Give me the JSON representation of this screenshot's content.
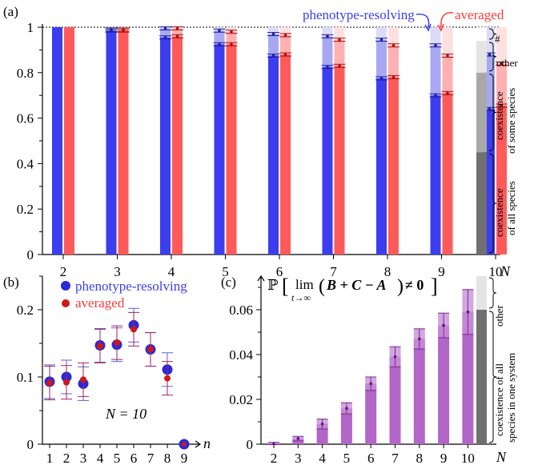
{
  "colors": {
    "phenotype_resolving": "#3d3df0",
    "averaged": "#ff5a5a",
    "purple": "#b266c8",
    "gray_dark": "#707070",
    "gray_mid": "#a8a8a8",
    "gray_light": "#e4e4e4"
  },
  "chart_data": [
    {
      "type": "bar",
      "panel_label": "(a)",
      "xlabel": "N",
      "ylabel": "",
      "ylim": [
        0,
        1
      ],
      "yticks": [
        "0",
        "0.2",
        "0.4",
        "0.6",
        "0.8",
        "1"
      ],
      "categories": [
        "2",
        "3",
        "4",
        "5",
        "6",
        "7",
        "8",
        "9",
        "10"
      ],
      "series": [
        {
          "name": "phenotype-resolving",
          "all_species": [
            1.0,
            0.985,
            0.955,
            0.925,
            0.875,
            0.825,
            0.775,
            0.7,
            0.64
          ],
          "some_species_total": [
            1.0,
            0.99,
            0.995,
            0.985,
            0.97,
            0.96,
            0.945,
            0.92,
            0.88
          ],
          "top": [
            1.0,
            0.995,
            1.0,
            0.99,
            0.975,
            0.97,
            0.955,
            0.925,
            0.9
          ]
        },
        {
          "name": "averaged",
          "all_species": [
            1.0,
            0.985,
            0.96,
            0.925,
            0.88,
            0.83,
            0.78,
            0.71,
            0.655
          ],
          "some_species_total": [
            1.0,
            0.99,
            0.995,
            0.98,
            0.965,
            0.945,
            0.92,
            0.875,
            0.84
          ],
          "top": [
            1.0,
            0.995,
            1.0,
            0.985,
            0.965,
            0.95,
            0.925,
            0.885,
            0.845
          ]
        }
      ],
      "legend_inset": {
        "segments": [
          "#",
          "other",
          "coexistence of some species",
          "coexistence of all species"
        ],
        "levels": [
          1.0,
          0.94,
          0.8,
          0.45,
          0.0
        ]
      },
      "labels": {
        "phenotype": "phenotype-resolving",
        "averaged": "averaged",
        "hash": "#",
        "other": "other",
        "some_line1": "coexistence",
        "some_line2": "of some species",
        "all_line1": "coexistence",
        "all_line2": "of all species"
      }
    },
    {
      "type": "scatter",
      "panel_label": "(b)",
      "xlabel": "n",
      "ylim": [
        0,
        0.25
      ],
      "yticks": [
        "0",
        "0.1",
        "0.2"
      ],
      "x": [
        1,
        2,
        3,
        4,
        5,
        6,
        7,
        8,
        9
      ],
      "annotation": "N = 10",
      "series": [
        {
          "name": "phenotype-resolving",
          "values": [
            0.093,
            0.1,
            0.09,
            0.147,
            0.148,
            0.177,
            0.141,
            0.111,
            0.0
          ],
          "err": 0.025
        },
        {
          "name": "averaged",
          "values": [
            0.091,
            0.092,
            0.096,
            0.146,
            0.151,
            0.171,
            0.141,
            0.098,
            0.0
          ],
          "err": 0.025
        }
      ]
    },
    {
      "type": "bar",
      "panel_label": "(c)",
      "xlabel": "N",
      "ylim": [
        0,
        0.075
      ],
      "yticks": [
        "0",
        "0.02",
        "0.04",
        "0.06"
      ],
      "categories": [
        "2",
        "3",
        "4",
        "5",
        "6",
        "7",
        "8",
        "9",
        "10"
      ],
      "title_prefix": "ℙ",
      "title_lim": "lim",
      "title_sub": "t→∞",
      "title_expr": "B + C − A",
      "title_tail": "≠ 0",
      "values": [
        0.0003,
        0.0025,
        0.009,
        0.016,
        0.027,
        0.039,
        0.047,
        0.053,
        0.059
      ],
      "errors": [
        0.0005,
        0.001,
        0.0022,
        0.0025,
        0.003,
        0.0045,
        0.0045,
        0.0055,
        0.01
      ],
      "legend_inset": {
        "segments": [
          "other",
          "coexistence of all species in one system"
        ],
        "levels": [
          0.075,
          0.06,
          0.0
        ]
      },
      "labels": {
        "other": "other",
        "all_line1": "coexistence of all",
        "all_line2": "species in one system"
      }
    }
  ]
}
